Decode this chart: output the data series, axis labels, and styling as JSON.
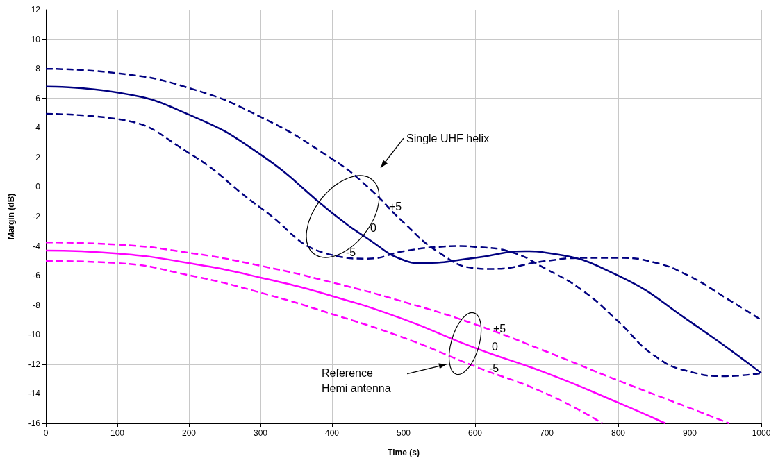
{
  "chart_data": {
    "type": "line",
    "xlabel": "Time (s)",
    "ylabel": "Margin (dB)",
    "xlim": [
      0,
      1000
    ],
    "xticks": [
      0,
      100,
      200,
      300,
      400,
      500,
      600,
      700,
      800,
      900,
      1000
    ],
    "ylim": [
      -16,
      12
    ],
    "yticks": [
      -16,
      -14,
      -12,
      -10,
      -8,
      -6,
      -4,
      -2,
      0,
      2,
      4,
      6,
      8,
      10,
      12
    ],
    "grid": true,
    "marker": "none",
    "series": [
      {
        "color": "#000080",
        "line_style": "dashed",
        "x": [
          0,
          100,
          200,
          300,
          400,
          450,
          500,
          550,
          600,
          620,
          700,
          750,
          800,
          850,
          900,
          950,
          1000
        ],
        "values": [
          8.0,
          7.7,
          6.7,
          4.75,
          1.9,
          0.0,
          -2.4,
          -4.45,
          -5.5,
          -5.55,
          -5.0,
          -4.8,
          -4.8,
          -5.1,
          -6.05,
          -7.5,
          -9.0
        ]
      },
      {
        "color": "#000080",
        "line_style": "solid",
        "x": [
          0,
          100,
          200,
          300,
          400,
          450,
          500,
          525,
          600,
          670,
          700,
          800,
          900,
          1000
        ],
        "values": [
          6.8,
          6.4,
          4.9,
          2.2,
          -1.75,
          -3.5,
          -4.95,
          -5.15,
          -4.8,
          -4.35,
          -4.45,
          -6.0,
          -9.1,
          -12.6
        ]
      },
      {
        "color": "#000080",
        "line_style": "dashed",
        "x": [
          0,
          100,
          200,
          300,
          400,
          450,
          500,
          550,
          580,
          600,
          650,
          700,
          750,
          800,
          850,
          900,
          950,
          1000
        ],
        "values": [
          4.95,
          4.6,
          2.3,
          -1.4,
          -4.6,
          -4.85,
          -4.35,
          -4.05,
          -4.0,
          -4.05,
          -4.4,
          -5.57,
          -7.0,
          -9.1,
          -11.4,
          -12.5,
          -12.8,
          -12.6
        ]
      },
      {
        "color": "#ff00ff",
        "line_style": "dashed",
        "x": [
          0,
          100,
          200,
          300,
          400,
          500,
          600,
          700,
          800,
          900,
          955
        ],
        "values": [
          -3.75,
          -3.9,
          -4.45,
          -5.33,
          -6.46,
          -7.77,
          -9.3,
          -11.15,
          -13.1,
          -14.96,
          -16
        ]
      },
      {
        "color": "#ff00ff",
        "line_style": "solid",
        "x": [
          0,
          100,
          200,
          300,
          400,
          500,
          600,
          700,
          800,
          866
        ],
        "values": [
          -4.3,
          -4.5,
          -5.15,
          -6.13,
          -7.38,
          -8.95,
          -10.9,
          -12.6,
          -14.6,
          -16
        ]
      },
      {
        "color": "#ff00ff",
        "line_style": "dashed",
        "x": [
          0,
          100,
          200,
          300,
          400,
          500,
          600,
          700,
          778
        ],
        "values": [
          -5.0,
          -5.15,
          -5.97,
          -7.15,
          -8.6,
          -10.2,
          -12.15,
          -14.0,
          -16
        ]
      }
    ],
    "annotations": [
      "Single UHF helix",
      "+5",
      "0",
      "-5",
      "Reference\nHemi antenna",
      "+5",
      "0",
      "-5"
    ]
  }
}
